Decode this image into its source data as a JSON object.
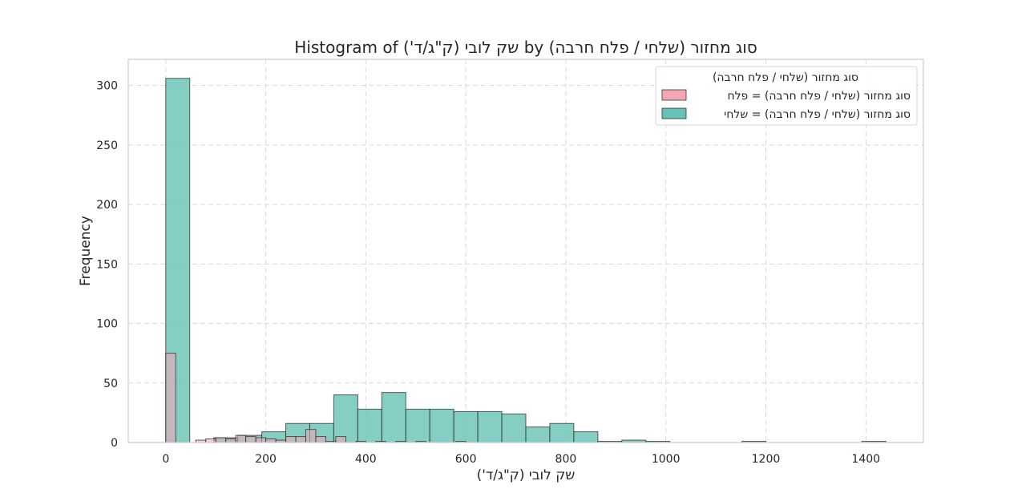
{
  "chart_data": {
    "type": "histogram",
    "title": "Histogram of שק לובי (ק\"ג/ד') by סוג מחזור (שלחי / פלח חרבה)",
    "xlabel": "שק לובי (ק\"ג/ד')",
    "ylabel": "Frequency",
    "xlim": [
      -75,
      1515
    ],
    "ylim": [
      0,
      322
    ],
    "xticks": [
      0,
      200,
      400,
      600,
      800,
      1000,
      1200,
      1400
    ],
    "yticks": [
      0,
      50,
      100,
      150,
      200,
      250,
      300
    ],
    "grid": true,
    "legend": {
      "title": "סוג מחזור (שלחי / פלח חרבה)",
      "placement": "top-right"
    },
    "series": [
      {
        "name": "סוג מחזור (שלחי / פלח חרבה) = שלחי",
        "color": "#66c2b4",
        "bins": [
          {
            "x0": 0,
            "x1": 48,
            "count": 306
          },
          {
            "x0": 48,
            "x1": 96,
            "count": 0
          },
          {
            "x0": 96,
            "x1": 144,
            "count": 4
          },
          {
            "x0": 144,
            "x1": 192,
            "count": 6
          },
          {
            "x0": 192,
            "x1": 240,
            "count": 9
          },
          {
            "x0": 240,
            "x1": 288,
            "count": 16
          },
          {
            "x0": 288,
            "x1": 336,
            "count": 16
          },
          {
            "x0": 336,
            "x1": 384,
            "count": 40
          },
          {
            "x0": 384,
            "x1": 432,
            "count": 28
          },
          {
            "x0": 432,
            "x1": 480,
            "count": 42
          },
          {
            "x0": 480,
            "x1": 528,
            "count": 28
          },
          {
            "x0": 528,
            "x1": 576,
            "count": 28
          },
          {
            "x0": 576,
            "x1": 624,
            "count": 26
          },
          {
            "x0": 624,
            "x1": 672,
            "count": 26
          },
          {
            "x0": 672,
            "x1": 720,
            "count": 24
          },
          {
            "x0": 720,
            "x1": 768,
            "count": 13
          },
          {
            "x0": 768,
            "x1": 816,
            "count": 16
          },
          {
            "x0": 816,
            "x1": 864,
            "count": 9
          },
          {
            "x0": 864,
            "x1": 912,
            "count": 1
          },
          {
            "x0": 912,
            "x1": 960,
            "count": 2
          },
          {
            "x0": 960,
            "x1": 1008,
            "count": 1
          },
          {
            "x0": 1152,
            "x1": 1200,
            "count": 1
          },
          {
            "x0": 1392,
            "x1": 1440,
            "count": 1
          }
        ]
      },
      {
        "name": "סוג מחזור (שלחי / פלח חרבה) = פלח",
        "color": "#f4a6b5",
        "bins": [
          {
            "x0": 0,
            "x1": 20,
            "count": 75
          },
          {
            "x0": 60,
            "x1": 80,
            "count": 2
          },
          {
            "x0": 80,
            "x1": 100,
            "count": 3
          },
          {
            "x0": 100,
            "x1": 120,
            "count": 4
          },
          {
            "x0": 120,
            "x1": 140,
            "count": 3
          },
          {
            "x0": 140,
            "x1": 160,
            "count": 6
          },
          {
            "x0": 160,
            "x1": 180,
            "count": 5
          },
          {
            "x0": 180,
            "x1": 200,
            "count": 4
          },
          {
            "x0": 200,
            "x1": 220,
            "count": 3
          },
          {
            "x0": 220,
            "x1": 240,
            "count": 2
          },
          {
            "x0": 240,
            "x1": 260,
            "count": 5
          },
          {
            "x0": 260,
            "x1": 280,
            "count": 5
          },
          {
            "x0": 280,
            "x1": 300,
            "count": 11
          },
          {
            "x0": 300,
            "x1": 320,
            "count": 5
          },
          {
            "x0": 320,
            "x1": 340,
            "count": 1
          },
          {
            "x0": 340,
            "x1": 360,
            "count": 5
          },
          {
            "x0": 380,
            "x1": 400,
            "count": 1
          },
          {
            "x0": 420,
            "x1": 440,
            "count": 1
          },
          {
            "x0": 460,
            "x1": 480,
            "count": 1
          },
          {
            "x0": 500,
            "x1": 520,
            "count": 1
          },
          {
            "x0": 580,
            "x1": 600,
            "count": 1
          }
        ]
      }
    ]
  }
}
